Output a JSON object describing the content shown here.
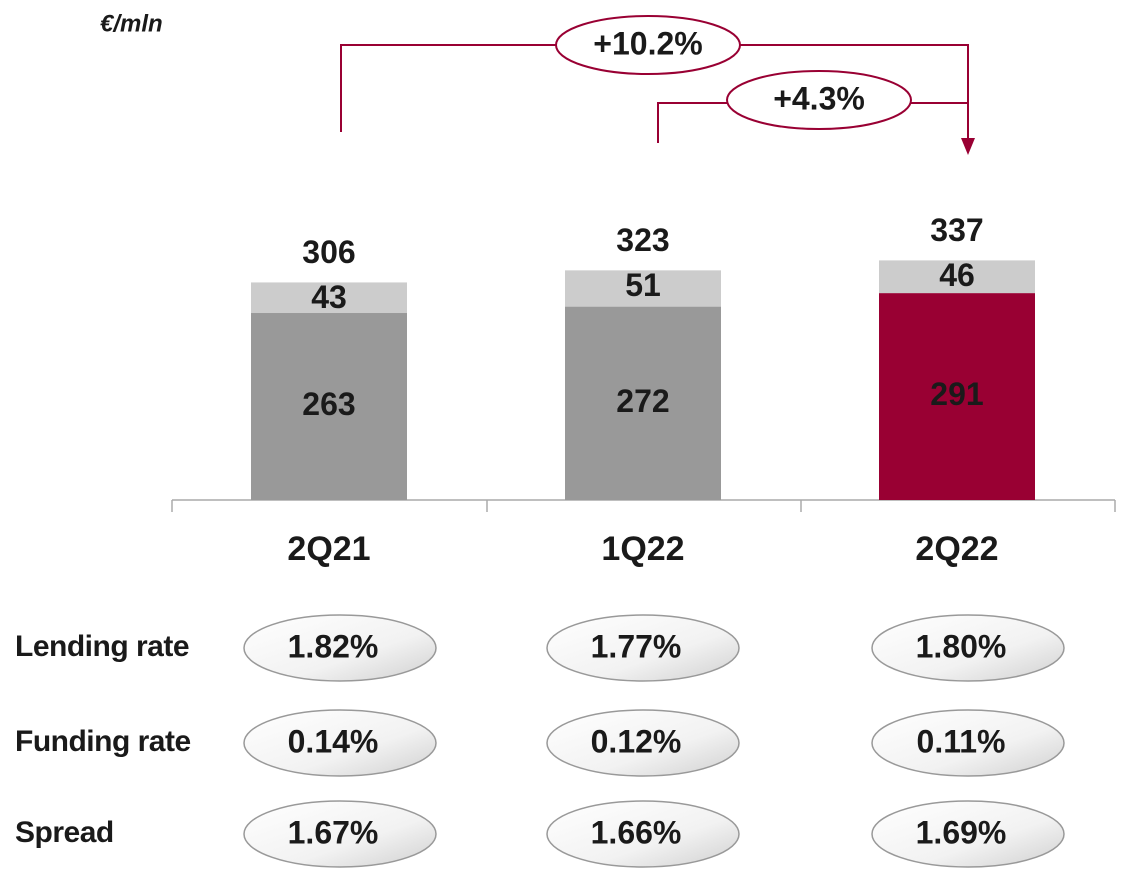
{
  "chart_data": {
    "type": "stacked-bar",
    "unit": "€/mln",
    "categories": [
      "2Q21",
      "1Q22",
      "2Q22"
    ],
    "series": [
      {
        "colors": [
          "#999999",
          "#999999",
          "#990033"
        ],
        "values": [
          263,
          272,
          291
        ]
      },
      {
        "color": "#cccccc",
        "values": [
          43,
          51,
          46
        ]
      }
    ],
    "totals": [
      306,
      323,
      337
    ],
    "annotations": [
      {
        "text": "+10.2%"
      },
      {
        "text": "+4.3%"
      }
    ],
    "accent": "#990033"
  },
  "rates": [
    {
      "label": "Lending rate",
      "values": [
        "1.82%",
        "1.77%",
        "1.80%"
      ]
    },
    {
      "label": "Funding rate",
      "values": [
        "0.14%",
        "0.12%",
        "0.11%"
      ]
    },
    {
      "label": "Spread",
      "values": [
        "1.67%",
        "1.66%",
        "1.69%"
      ]
    }
  ]
}
